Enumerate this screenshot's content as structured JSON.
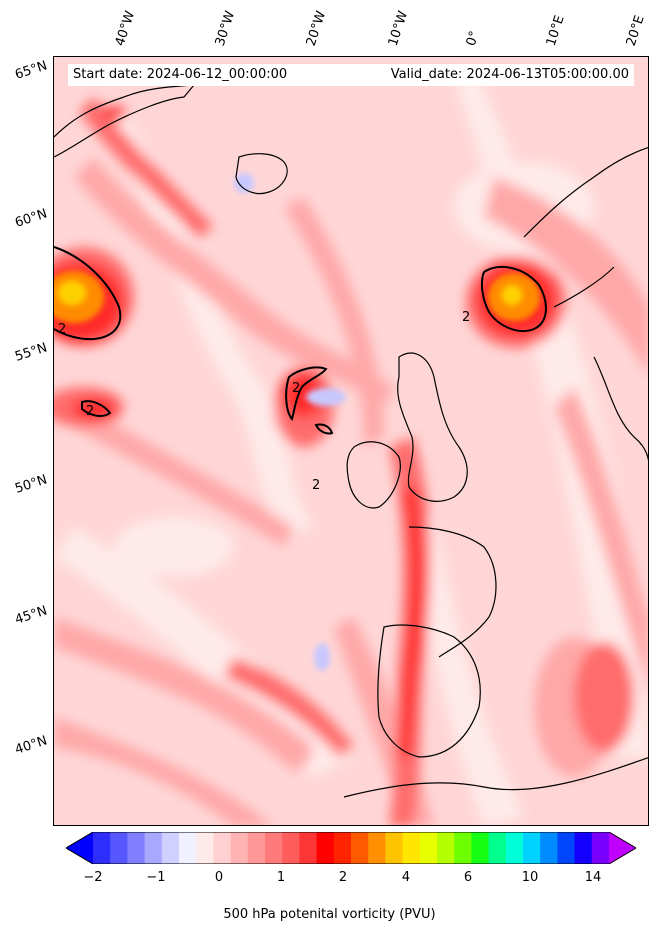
{
  "header": {
    "start_date": "Start date: 2024-06-12_00:00:00",
    "valid_date": "Valid_date: 2024-06-13T05:00:00.00"
  },
  "lon_labels": [
    "40°W",
    "30°W",
    "20°W",
    "10°W",
    "0°",
    "10°E",
    "20°E"
  ],
  "lat_labels": [
    "65°N",
    "60°N",
    "55°N",
    "50°N",
    "45°N",
    "40°N"
  ],
  "contour_labels": [
    "2",
    "2",
    "2",
    "2",
    "2"
  ],
  "colorbar": {
    "title": "500 hPa potenital vorticity (PVU)",
    "tick_labels": [
      "−2",
      "−1",
      "0",
      "1",
      "2",
      "4",
      "6",
      "10",
      "14"
    ],
    "colors": [
      "#0000ff",
      "#2e2eff",
      "#5757ff",
      "#8080ff",
      "#a8a8ff",
      "#d0d0ff",
      "#f0f0ff",
      "#ffeaea",
      "#ffd0d0",
      "#ffb4b4",
      "#ff9898",
      "#ff7a7a",
      "#ff5c5c",
      "#ff3636",
      "#ff0000",
      "#ff2400",
      "#ff5a00",
      "#ff9000",
      "#ffc400",
      "#ffe600",
      "#e8ff00",
      "#b4ff00",
      "#6eff00",
      "#14ff14",
      "#00ff8c",
      "#00ffd8",
      "#00d2ff",
      "#008cff",
      "#0046ff",
      "#1400ff",
      "#7800ff",
      "#c000ff"
    ]
  },
  "map_colors": {
    "background": "#ffd6d6",
    "light": "#ffeaea",
    "medium": "#ffa8a8",
    "strong": "#ff6c6c",
    "core": "#ff2a2a",
    "orange": "#ff8c00",
    "yellow": "#ffd000",
    "blue": "#c8c8ff"
  }
}
